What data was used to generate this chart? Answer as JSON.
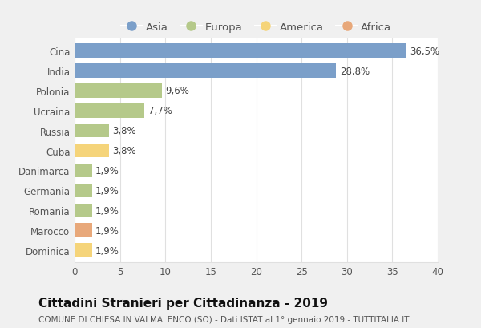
{
  "categories": [
    "Cina",
    "India",
    "Polonia",
    "Ucraina",
    "Russia",
    "Cuba",
    "Danimarca",
    "Germania",
    "Romania",
    "Marocco",
    "Dominica"
  ],
  "values": [
    36.5,
    28.8,
    9.6,
    7.7,
    3.8,
    3.8,
    1.9,
    1.9,
    1.9,
    1.9,
    1.9
  ],
  "labels": [
    "36,5%",
    "28,8%",
    "9,6%",
    "7,7%",
    "3,8%",
    "3,8%",
    "1,9%",
    "1,9%",
    "1,9%",
    "1,9%",
    "1,9%"
  ],
  "colors": [
    "#7b9fc9",
    "#7b9fc9",
    "#b5c98a",
    "#b5c98a",
    "#b5c98a",
    "#f5d47a",
    "#b5c98a",
    "#b5c98a",
    "#b5c98a",
    "#e8a87a",
    "#f5d47a"
  ],
  "legend_labels": [
    "Asia",
    "Europa",
    "America",
    "Africa"
  ],
  "legend_colors": [
    "#7b9fc9",
    "#b5c98a",
    "#f5d47a",
    "#e8a87a"
  ],
  "title": "Cittadini Stranieri per Cittadinanza - 2019",
  "subtitle": "COMUNE DI CHIESA IN VALMALENCO (SO) - Dati ISTAT al 1° gennaio 2019 - TUTTITALIA.IT",
  "xlim": [
    0,
    40
  ],
  "xticks": [
    0,
    5,
    10,
    15,
    20,
    25,
    30,
    35,
    40
  ],
  "outer_bg": "#f0f0f0",
  "plot_bg": "#ffffff",
  "grid_color": "#e0e0e0",
  "bar_height": 0.7,
  "title_fontsize": 11,
  "subtitle_fontsize": 7.5,
  "label_fontsize": 8.5,
  "tick_fontsize": 8.5,
  "legend_fontsize": 9.5
}
